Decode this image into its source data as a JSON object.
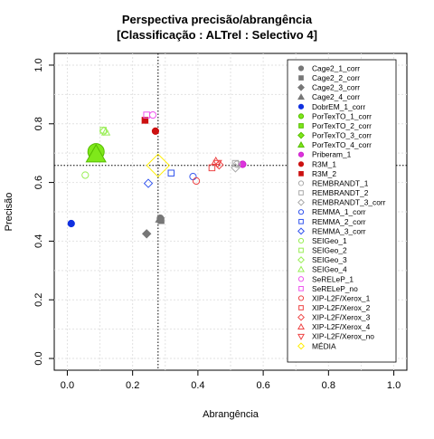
{
  "chart_data": {
    "type": "scatter",
    "title": "Perspectiva precisão/abrangência",
    "subtitle": "[Classificação : ALTrel : Selectivo 4]",
    "xlabel": "Abrangência",
    "ylabel": "Precisão",
    "xlim": [
      -0.04,
      1.04
    ],
    "ylim": [
      -0.04,
      1.04
    ],
    "x_ticks": [
      "0.0",
      "0.2",
      "0.4",
      "0.6",
      "0.8",
      "1.0"
    ],
    "y_ticks": [
      "0.0",
      "0.2",
      "0.4",
      "0.6",
      "0.8",
      "1.0"
    ],
    "grid": true,
    "reference_lines": {
      "x": 0.278,
      "y": 0.658
    },
    "legend_position": "right",
    "series": [
      {
        "name": "Cage2_1_corr",
        "marker": "circle",
        "color": "#777777",
        "fill": "#777777",
        "x": [
          0.285
        ],
        "y": [
          0.478
        ]
      },
      {
        "name": "Cage2_2_corr",
        "marker": "square",
        "color": "#777777",
        "fill": "#777777",
        "x": [
          0.287
        ],
        "y": [
          0.47
        ]
      },
      {
        "name": "Cage2_3_corr",
        "marker": "diamond",
        "color": "#777777",
        "fill": "#777777",
        "x": [
          0.243
        ],
        "y": [
          0.425
        ]
      },
      {
        "name": "Cage2_4_corr",
        "marker": "triangle",
        "color": "#777777",
        "fill": "#777777",
        "x": [
          0.283
        ],
        "y": [
          0.475
        ]
      },
      {
        "name": "DobrEM_1_corr",
        "marker": "circle",
        "color": "#1030e0",
        "fill": "#1030e0",
        "x": [
          0.012
        ],
        "y": [
          0.46
        ]
      },
      {
        "name": "PorTexTO_1_corr",
        "marker": "circle",
        "color": "#55bb00",
        "fill": "#7fe81a",
        "x": [
          0.088
        ],
        "y": [
          0.705
        ],
        "size": 9
      },
      {
        "name": "PorTexTO_2_corr",
        "marker": "square",
        "color": "#55bb00",
        "fill": "#7fe81a",
        "x": [
          0.088
        ],
        "y": [
          0.7
        ]
      },
      {
        "name": "PorTexTO_3_corr",
        "marker": "diamond",
        "color": "#55bb00",
        "fill": "#7fe81a",
        "x": [
          0.088
        ],
        "y": [
          0.695
        ]
      },
      {
        "name": "PorTexTO_4_corr",
        "marker": "triangle",
        "color": "#55bb00",
        "fill": "#7fe81a",
        "x": [
          0.088
        ],
        "y": [
          0.695
        ],
        "size": 9
      },
      {
        "name": "Priberam_1",
        "marker": "circle",
        "color": "#cc22cc",
        "fill": "#dd33dd",
        "x": [
          0.537
        ],
        "y": [
          0.662
        ]
      },
      {
        "name": "R3M_1",
        "marker": "circle",
        "color": "#cc1111",
        "fill": "#cc1111",
        "x": [
          0.27
        ],
        "y": [
          0.775
        ]
      },
      {
        "name": "R3M_2",
        "marker": "square",
        "color": "#cc1111",
        "fill": "#cc1111",
        "x": [
          0.238
        ],
        "y": [
          0.812
        ]
      },
      {
        "name": "REMBRANDT_1",
        "marker": "circle",
        "color": "#aaaaaa",
        "fill": "none",
        "x": [
          0.52
        ],
        "y": [
          0.662
        ]
      },
      {
        "name": "REMBRANDT_2",
        "marker": "square",
        "color": "#aaaaaa",
        "fill": "none",
        "x": [
          0.515
        ],
        "y": [
          0.665
        ]
      },
      {
        "name": "REMBRANDT_3_corr",
        "marker": "diamond",
        "color": "#aaaaaa",
        "fill": "none",
        "x": [
          0.515
        ],
        "y": [
          0.65
        ]
      },
      {
        "name": "REMMA_1_corr",
        "marker": "circle",
        "color": "#3355ee",
        "fill": "none",
        "x": [
          0.385
        ],
        "y": [
          0.62
        ]
      },
      {
        "name": "REMMA_2_corr",
        "marker": "square",
        "color": "#3355ee",
        "fill": "none",
        "x": [
          0.318
        ],
        "y": [
          0.632
        ]
      },
      {
        "name": "REMMA_3_corr",
        "marker": "diamond",
        "color": "#3355ee",
        "fill": "none",
        "x": [
          0.248
        ],
        "y": [
          0.597
        ]
      },
      {
        "name": "SEIGeo_1",
        "marker": "circle",
        "color": "#99ee55",
        "fill": "none",
        "x": [
          0.055
        ],
        "y": [
          0.625
        ]
      },
      {
        "name": "SEIGeo_2",
        "marker": "square",
        "color": "#99ee55",
        "fill": "none",
        "x": [
          0.11
        ],
        "y": [
          0.778
        ]
      },
      {
        "name": "SEIGeo_3",
        "marker": "diamond",
        "color": "#99ee55",
        "fill": "none",
        "x": [
          0.112
        ],
        "y": [
          0.775
        ]
      },
      {
        "name": "SEIGeo_4",
        "marker": "triangle",
        "color": "#99ee55",
        "fill": "none",
        "x": [
          0.118
        ],
        "y": [
          0.772
        ]
      },
      {
        "name": "SeRELeP_1",
        "marker": "circle",
        "color": "#ee55ee",
        "fill": "none",
        "x": [
          0.262
        ],
        "y": [
          0.83
        ]
      },
      {
        "name": "SeRELeP_no",
        "marker": "square",
        "color": "#ee55ee",
        "fill": "none",
        "x": [
          0.243
        ],
        "y": [
          0.83
        ]
      },
      {
        "name": "XIP-L2F/Xerox_1",
        "marker": "circle",
        "color": "#ee4444",
        "fill": "none",
        "x": [
          0.395
        ],
        "y": [
          0.605
        ]
      },
      {
        "name": "XIP-L2F/Xerox_2",
        "marker": "square",
        "color": "#ee4444",
        "fill": "none",
        "x": [
          0.443
        ],
        "y": [
          0.65
        ]
      },
      {
        "name": "XIP-L2F/Xerox_3",
        "marker": "diamond",
        "color": "#ee4444",
        "fill": "none",
        "x": [
          0.465
        ],
        "y": [
          0.66
        ]
      },
      {
        "name": "XIP-L2F/Xerox_4",
        "marker": "triangle",
        "color": "#ee4444",
        "fill": "none",
        "x": [
          0.455
        ],
        "y": [
          0.672
        ]
      },
      {
        "name": "XIP-L2F/Xerox_no",
        "marker": "triangle-down",
        "color": "#ee4444",
        "fill": "none",
        "x": [
          0.46
        ],
        "y": [
          0.665
        ]
      },
      {
        "name": "MÉDIA",
        "marker": "diamond",
        "color": "#ffee00",
        "fill": "none",
        "x": [
          0.278
        ],
        "y": [
          0.658
        ],
        "size": 10
      }
    ]
  }
}
